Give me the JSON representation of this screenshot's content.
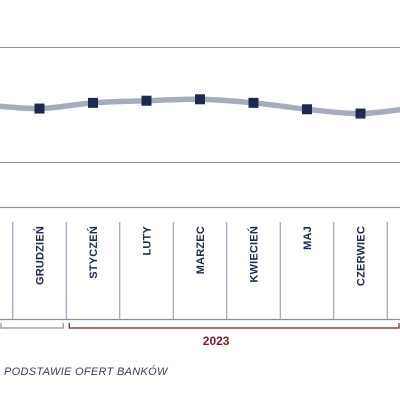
{
  "chart_data": {
    "type": "line",
    "categories": [
      "",
      "GRUDZIEŃ",
      "STYCZEŃ",
      "LUTY",
      "MARZEC",
      "KWIECIEŃ",
      "MAJ",
      "CZERWIEC",
      ""
    ],
    "series": [
      {
        "values": [
          0.0,
          -0.5,
          0.3,
          0.6,
          0.8,
          0.3,
          -0.6,
          -1.2,
          -0.4
        ]
      }
    ],
    "ylim": [
      -8,
      8
    ],
    "year_groups": [
      {
        "label": "",
        "from": 0,
        "to": 1
      },
      {
        "label": "2023",
        "from": 2,
        "to": 8
      }
    ],
    "colors": {
      "line": "#a7acbd",
      "marker": "#1d2a4d",
      "axis": "#8a8fa3",
      "year_bracket": "#7a1a22"
    },
    "source": "PODSTAWIE OFERT BANKÓW"
  }
}
